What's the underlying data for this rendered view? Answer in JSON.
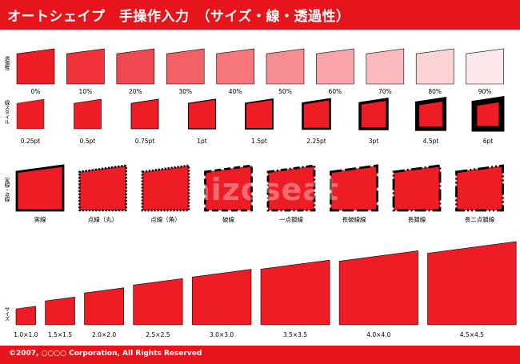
{
  "title": "オートシェイプ　手操作入力　（サイズ・線・透過性）",
  "footer": "©2007, ○○○○ Corporation, All Rights Reserved",
  "colors": {
    "accent": "#e8141b",
    "shape_fill": "#ee1c25"
  },
  "rows": {
    "transparency": {
      "label": "透過性",
      "items": [
        {
          "caption": "0%",
          "value": 0
        },
        {
          "caption": "10%",
          "value": 10
        },
        {
          "caption": "20%",
          "value": 20
        },
        {
          "caption": "30%",
          "value": 30
        },
        {
          "caption": "40%",
          "value": 40
        },
        {
          "caption": "50%",
          "value": 50
        },
        {
          "caption": "60%",
          "value": 60
        },
        {
          "caption": "70%",
          "value": 70
        },
        {
          "caption": "80%",
          "value": 80
        },
        {
          "caption": "90%",
          "value": 90
        }
      ]
    },
    "line_style": {
      "label": "線スタイル",
      "items": [
        {
          "caption": "0.25pt",
          "value": 0.25
        },
        {
          "caption": "0.5pt",
          "value": 0.5
        },
        {
          "caption": "0.75pt",
          "value": 0.75
        },
        {
          "caption": "1pt",
          "value": 1
        },
        {
          "caption": "1.5pt",
          "value": 1.5
        },
        {
          "caption": "2.25pt",
          "value": 2.25
        },
        {
          "caption": "3pt",
          "value": 3
        },
        {
          "caption": "4.5pt",
          "value": 4.5
        },
        {
          "caption": "6pt",
          "value": 6
        }
      ]
    },
    "dash": {
      "label": "実線・点線",
      "items": [
        {
          "caption": "実線",
          "dash": "solid"
        },
        {
          "caption": "点線（丸）",
          "dash": "round-dot"
        },
        {
          "caption": "点線（角）",
          "dash": "square-dot"
        },
        {
          "caption": "破線",
          "dash": "dash"
        },
        {
          "caption": "一点鎖線",
          "dash": "dash-dot"
        },
        {
          "caption": "長破線線",
          "dash": "long-dash"
        },
        {
          "caption": "長鎖線",
          "dash": "long-dash-dot"
        },
        {
          "caption": "長二点鎖線",
          "dash": "long-dash-dot-dot"
        }
      ]
    },
    "size": {
      "label": "サイズ",
      "items": [
        {
          "caption": "1.0×1.0",
          "value": 1.0
        },
        {
          "caption": "1.5×1.5",
          "value": 1.5
        },
        {
          "caption": "2.0×2.0",
          "value": 2.0
        },
        {
          "caption": "2.5×2.5",
          "value": 2.5
        },
        {
          "caption": "3.0×3.0",
          "value": 3.0
        },
        {
          "caption": "3.5×3.5",
          "value": 3.5
        },
        {
          "caption": "4.0×4.0",
          "value": 4.0
        },
        {
          "caption": "4.5×4.5",
          "value": 4.5
        }
      ]
    }
  }
}
